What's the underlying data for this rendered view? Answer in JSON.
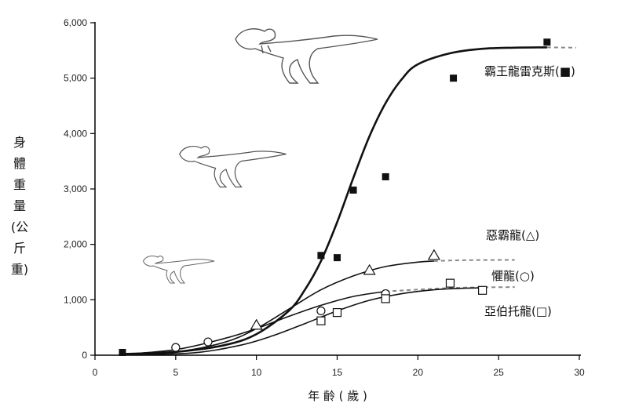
{
  "chart_data": {
    "type": "scatter",
    "xlabel": "年 齡 ( 歲 )",
    "ylabel": "身體重量(公斤重)",
    "xlim": [
      0,
      30
    ],
    "ylim": [
      0,
      6000
    ],
    "x_ticks": [
      "0",
      "5",
      "10",
      "15",
      "20",
      "25",
      "30"
    ],
    "y_ticks": [
      "0",
      "1,000",
      "2,000",
      "3,000",
      "4,000",
      "5,000",
      "6,000"
    ],
    "grid": false,
    "series": [
      {
        "name": "霸王龍雷克斯(■)",
        "marker": "filled-square",
        "points": [
          [
            1.7,
            50
          ],
          [
            14,
            1800
          ],
          [
            15,
            1760
          ],
          [
            16,
            2980
          ],
          [
            18,
            3220
          ],
          [
            22.2,
            5000
          ],
          [
            28,
            5650
          ]
        ],
        "fit": [
          [
            1.5,
            20
          ],
          [
            5,
            60
          ],
          [
            8,
            180
          ],
          [
            10,
            380
          ],
          [
            12,
            800
          ],
          [
            13,
            1180
          ],
          [
            14,
            1700
          ],
          [
            15,
            2400
          ],
          [
            16,
            3200
          ],
          [
            17,
            3950
          ],
          [
            18,
            4550
          ],
          [
            19,
            4980
          ],
          [
            20,
            5250
          ],
          [
            22,
            5450
          ],
          [
            24,
            5530
          ],
          [
            26,
            5550
          ],
          [
            28,
            5555
          ]
        ],
        "fit_extension": [
          [
            28,
            5555
          ],
          [
            29.8,
            5550
          ]
        ]
      },
      {
        "name": "惡霸龍(△)",
        "marker": "open-triangle",
        "points": [
          [
            10,
            540
          ],
          [
            17,
            1530
          ],
          [
            21,
            1800
          ]
        ],
        "fit": [
          [
            1.5,
            5
          ],
          [
            5,
            60
          ],
          [
            8,
            230
          ],
          [
            10,
            480
          ],
          [
            12,
            830
          ],
          [
            14,
            1180
          ],
          [
            16,
            1430
          ],
          [
            18,
            1600
          ],
          [
            20,
            1680
          ],
          [
            21,
            1700
          ]
        ],
        "fit_extension": [
          [
            21,
            1700
          ],
          [
            23,
            1715
          ],
          [
            26,
            1720
          ]
        ]
      },
      {
        "name": "懼龍(○)",
        "marker": "open-circle",
        "points": [
          [
            5,
            140
          ],
          [
            7,
            240
          ],
          [
            14,
            800
          ],
          [
            18,
            1110
          ]
        ],
        "fit": [
          [
            1.5,
            10
          ],
          [
            5,
            100
          ],
          [
            8,
            300
          ],
          [
            10,
            480
          ],
          [
            12,
            700
          ],
          [
            14,
            900
          ],
          [
            16,
            1060
          ],
          [
            18,
            1150
          ]
        ],
        "fit_extension": [
          [
            18,
            1150
          ],
          [
            21,
            1200
          ],
          [
            23,
            1220
          ],
          [
            26,
            1230
          ]
        ]
      },
      {
        "name": "亞伯托龍(□)",
        "marker": "open-square",
        "points": [
          [
            14,
            620
          ],
          [
            15,
            770
          ],
          [
            18,
            1020
          ],
          [
            22,
            1300
          ],
          [
            24,
            1170
          ]
        ],
        "fit": [
          [
            1.5,
            5
          ],
          [
            6,
            40
          ],
          [
            9,
            180
          ],
          [
            11,
            350
          ],
          [
            13,
            570
          ],
          [
            15,
            800
          ],
          [
            17,
            990
          ],
          [
            19,
            1110
          ],
          [
            21,
            1180
          ],
          [
            23,
            1210
          ],
          [
            24,
            1215
          ]
        ],
        "fit_extension": []
      }
    ]
  }
}
